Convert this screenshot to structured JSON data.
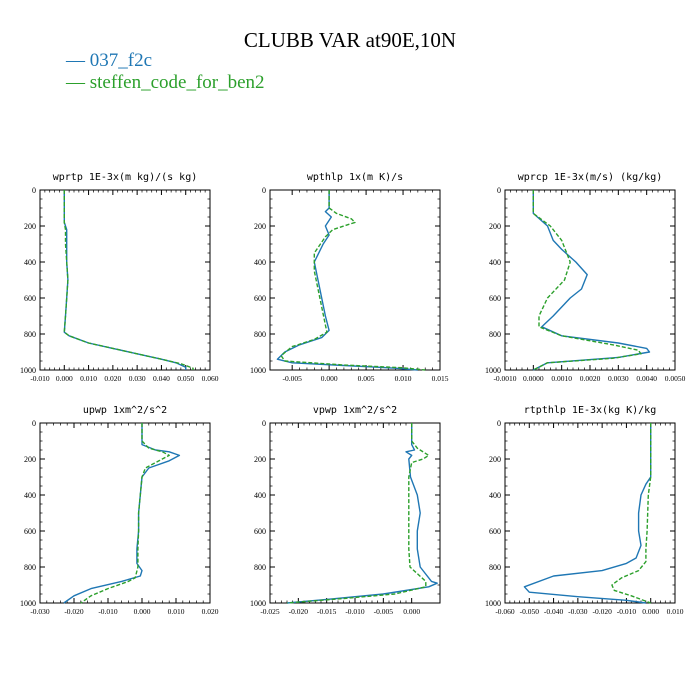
{
  "title": "CLUBB VAR at90E,10N",
  "legend": [
    {
      "name": "037_f2c",
      "color": "#1f77b4",
      "style": "solid"
    },
    {
      "name": "steffen_code_for_ben2",
      "color": "#2ca02c",
      "style": "dashed"
    }
  ],
  "chart_data": [
    {
      "type": "line",
      "title": "wprtp  1E-3x(m kg)/(s kg)",
      "xlim": [
        -0.01,
        0.06
      ],
      "ylim": [
        0,
        1000
      ],
      "y_inverted": true,
      "xticks": [
        "-0.010",
        "0.000",
        "0.010",
        "0.020",
        "0.030",
        "0.040",
        "0.050",
        "0.060"
      ],
      "yticks": [
        "0",
        "200",
        "400",
        "600",
        "800",
        "1000"
      ],
      "series": [
        {
          "name": "037_f2c",
          "points": [
            [
              0,
              0
            ],
            [
              0,
              100
            ],
            [
              0,
              180
            ],
            [
              0.001,
              220
            ],
            [
              0.001,
              300
            ],
            [
              0.001,
              400
            ],
            [
              0.0015,
              500
            ],
            [
              0.001,
              600
            ],
            [
              0.0005,
              700
            ],
            [
              0,
              790
            ],
            [
              0.002,
              810
            ],
            [
              0.01,
              850
            ],
            [
              0.02,
              880
            ],
            [
              0.03,
              910
            ],
            [
              0.04,
              940
            ],
            [
              0.046,
              960
            ],
            [
              0.05,
              985
            ],
            [
              0.05,
              1000
            ]
          ]
        },
        {
          "name": "steffen_code_for_ben2",
          "points": [
            [
              0,
              0
            ],
            [
              0,
              100
            ],
            [
              0,
              180
            ],
            [
              0.0005,
              220
            ],
            [
              0.0005,
              300
            ],
            [
              0.001,
              400
            ],
            [
              0.0015,
              500
            ],
            [
              0.001,
              600
            ],
            [
              0.0005,
              700
            ],
            [
              0,
              790
            ],
            [
              0.002,
              810
            ],
            [
              0.01,
              850
            ],
            [
              0.02,
              880
            ],
            [
              0.03,
              910
            ],
            [
              0.04,
              940
            ],
            [
              0.048,
              965
            ],
            [
              0.053,
              990
            ],
            [
              0.053,
              1000
            ]
          ]
        }
      ]
    },
    {
      "type": "line",
      "title": "wpthlp  1x(m K)/s",
      "xlim": [
        -0.008,
        0.015
      ],
      "ylim": [
        0,
        1000
      ],
      "y_inverted": true,
      "xticks": [
        "-0.005",
        "0.000",
        "0.005",
        "0.010",
        "0.015"
      ],
      "yticks": [
        "0",
        "200",
        "400",
        "600",
        "800",
        "1000"
      ],
      "series": [
        {
          "name": "037_f2c",
          "points": [
            [
              0,
              0
            ],
            [
              0,
              100
            ],
            [
              -0.0005,
              120
            ],
            [
              0.0003,
              150
            ],
            [
              -0.0005,
              200
            ],
            [
              0,
              250
            ],
            [
              -0.0008,
              300
            ],
            [
              -0.002,
              400
            ],
            [
              -0.0015,
              500
            ],
            [
              -0.001,
              600
            ],
            [
              -0.0005,
              700
            ],
            [
              0,
              780
            ],
            [
              -0.001,
              820
            ],
            [
              -0.004,
              860
            ],
            [
              -0.006,
              900
            ],
            [
              -0.007,
              940
            ],
            [
              -0.005,
              960
            ],
            [
              0.002,
              975
            ],
            [
              0.009,
              990
            ],
            [
              0.012,
              1000
            ]
          ]
        },
        {
          "name": "steffen_code_for_ben2",
          "points": [
            [
              0,
              0
            ],
            [
              0,
              100
            ],
            [
              0.001,
              130
            ],
            [
              0.003,
              160
            ],
            [
              0.0035,
              180
            ],
            [
              0.002,
              200
            ],
            [
              0.0005,
              220
            ],
            [
              -0.0005,
              260
            ],
            [
              -0.002,
              350
            ],
            [
              -0.002,
              450
            ],
            [
              -0.0015,
              550
            ],
            [
              -0.001,
              650
            ],
            [
              -0.0005,
              750
            ],
            [
              -0.0003,
              790
            ],
            [
              -0.002,
              830
            ],
            [
              -0.005,
              870
            ],
            [
              -0.0065,
              920
            ],
            [
              -0.006,
              950
            ],
            [
              0.002,
              972
            ],
            [
              0.01,
              988
            ],
            [
              0.013,
              1000
            ]
          ]
        }
      ]
    },
    {
      "type": "line",
      "title": "wprcp  1E-3x(m/s) (kg/kg)",
      "xlim": [
        -0.001,
        0.005
      ],
      "ylim": [
        0,
        1000
      ],
      "y_inverted": true,
      "xticks": [
        "-0.0010",
        "0.0000",
        "0.0010",
        "0.0020",
        "0.0030",
        "0.0040",
        "0.0050"
      ],
      "yticks": [
        "0",
        "200",
        "400",
        "600",
        "800",
        "1000"
      ],
      "series": [
        {
          "name": "037_f2c",
          "points": [
            [
              0,
              0
            ],
            [
              0,
              100
            ],
            [
              0,
              130
            ],
            [
              0.0005,
              200
            ],
            [
              0.0007,
              280
            ],
            [
              0.001,
              330
            ],
            [
              0.0015,
              400
            ],
            [
              0.0019,
              470
            ],
            [
              0.0017,
              550
            ],
            [
              0.0013,
              600
            ],
            [
              0.0007,
              700
            ],
            [
              0.0003,
              760
            ],
            [
              0.001,
              810
            ],
            [
              0.003,
              850
            ],
            [
              0.004,
              880
            ],
            [
              0.0041,
              900
            ],
            [
              0.003,
              930
            ],
            [
              0.0005,
              960
            ],
            [
              0,
              1000
            ]
          ]
        },
        {
          "name": "steffen_code_for_ben2",
          "points": [
            [
              0,
              0
            ],
            [
              0,
              100
            ],
            [
              0,
              130
            ],
            [
              0.0006,
              200
            ],
            [
              0.001,
              280
            ],
            [
              0.0013,
              400
            ],
            [
              0.0011,
              500
            ],
            [
              0.0005,
              600
            ],
            [
              0.0002,
              700
            ],
            [
              0.0002,
              760
            ],
            [
              0.001,
              810
            ],
            [
              0.0028,
              860
            ],
            [
              0.0037,
              890
            ],
            [
              0.0038,
              910
            ],
            [
              0.0028,
              935
            ],
            [
              0.0005,
              960
            ],
            [
              0,
              1000
            ]
          ]
        }
      ]
    },
    {
      "type": "line",
      "title": "upwp  1xm^2/s^2",
      "xlim": [
        -0.03,
        0.02
      ],
      "ylim": [
        0,
        1000
      ],
      "y_inverted": true,
      "xticks": [
        "-0.030",
        "-0.020",
        "-0.010",
        "0.000",
        "0.010",
        "0.020"
      ],
      "yticks": [
        "0",
        "200",
        "400",
        "600",
        "800",
        "1000"
      ],
      "series": [
        {
          "name": "037_f2c",
          "points": [
            [
              0,
              0
            ],
            [
              0,
              100
            ],
            [
              0,
              120
            ],
            [
              0.004,
              150
            ],
            [
              0.008,
              160
            ],
            [
              0.011,
              180
            ],
            [
              0.008,
              210
            ],
            [
              0.002,
              250
            ],
            [
              0,
              300
            ],
            [
              -0.0005,
              400
            ],
            [
              -0.001,
              500
            ],
            [
              -0.001,
              600
            ],
            [
              -0.0015,
              700
            ],
            [
              -0.0015,
              780
            ],
            [
              0,
              820
            ],
            [
              -0.0005,
              850
            ],
            [
              -0.006,
              880
            ],
            [
              -0.015,
              920
            ],
            [
              -0.02,
              960
            ],
            [
              -0.023,
              1000
            ]
          ]
        },
        {
          "name": "steffen_code_for_ben2",
          "points": [
            [
              0,
              0
            ],
            [
              0,
              100
            ],
            [
              0.002,
              140
            ],
            [
              0.006,
              160
            ],
            [
              0.008,
              180
            ],
            [
              0.005,
              210
            ],
            [
              0.001,
              250
            ],
            [
              0,
              300
            ],
            [
              -0.0005,
              400
            ],
            [
              -0.001,
              500
            ],
            [
              -0.001,
              600
            ],
            [
              -0.0012,
              700
            ],
            [
              -0.0012,
              800
            ],
            [
              -0.002,
              860
            ],
            [
              -0.004,
              880
            ],
            [
              -0.01,
              920
            ],
            [
              -0.015,
              960
            ],
            [
              -0.018,
              1000
            ]
          ]
        }
      ]
    },
    {
      "type": "line",
      "title": "vpwp  1xm^2/s^2",
      "xlim": [
        -0.025,
        0.005
      ],
      "ylim": [
        0,
        1000
      ],
      "y_inverted": true,
      "xticks": [
        "-0.025",
        "-0.020",
        "-0.015",
        "-0.010",
        "-0.005",
        "0.000"
      ],
      "yticks": [
        "0",
        "200",
        "400",
        "600",
        "800",
        "1000"
      ],
      "series": [
        {
          "name": "037_f2c",
          "points": [
            [
              0,
              0
            ],
            [
              0,
              100
            ],
            [
              0,
              120
            ],
            [
              0.0005,
              150
            ],
            [
              -0.001,
              160
            ],
            [
              0,
              180
            ],
            [
              -0.0005,
              200
            ],
            [
              -0.0002,
              300
            ],
            [
              0.001,
              400
            ],
            [
              0.0015,
              500
            ],
            [
              0.001,
              600
            ],
            [
              0.001,
              700
            ],
            [
              0.0015,
              800
            ],
            [
              0.0035,
              880
            ],
            [
              0.0045,
              890
            ],
            [
              0.003,
              910
            ],
            [
              -0.005,
              950
            ],
            [
              -0.015,
              980
            ],
            [
              -0.022,
              1000
            ]
          ]
        },
        {
          "name": "steffen_code_for_ben2",
          "points": [
            [
              0,
              0
            ],
            [
              0,
              100
            ],
            [
              0.001,
              140
            ],
            [
              0.003,
              180
            ],
            [
              0.002,
              200
            ],
            [
              0,
              220
            ],
            [
              -0.0005,
              300
            ],
            [
              -0.0005,
              500
            ],
            [
              -0.0005,
              700
            ],
            [
              -0.0003,
              800
            ],
            [
              0.0025,
              880
            ],
            [
              0.0025,
              910
            ],
            [
              -0.003,
              950
            ],
            [
              -0.012,
              975
            ],
            [
              -0.022,
              1000
            ]
          ]
        }
      ]
    },
    {
      "type": "line",
      "title": "rtpthlp  1E-3x(kg K)/kg",
      "xlim": [
        -0.06,
        0.01
      ],
      "ylim": [
        0,
        1000
      ],
      "y_inverted": true,
      "xticks": [
        "-0.060",
        "-0.050",
        "-0.040",
        "-0.030",
        "-0.020",
        "-0.010",
        "0.000",
        "0.010"
      ],
      "yticks": [
        "0",
        "200",
        "400",
        "600",
        "800",
        "1000"
      ],
      "series": [
        {
          "name": "037_f2c",
          "points": [
            [
              0,
              0
            ],
            [
              0,
              200
            ],
            [
              0,
              300
            ],
            [
              -0.002,
              340
            ],
            [
              -0.004,
              400
            ],
            [
              -0.005,
              500
            ],
            [
              -0.005,
              600
            ],
            [
              -0.004,
              680
            ],
            [
              -0.006,
              750
            ],
            [
              -0.01,
              780
            ],
            [
              -0.02,
              820
            ],
            [
              -0.04,
              850
            ],
            [
              -0.052,
              910
            ],
            [
              -0.05,
              940
            ],
            [
              -0.03,
              965
            ],
            [
              -0.01,
              985
            ],
            [
              -0.002,
              1000
            ]
          ]
        },
        {
          "name": "steffen_code_for_ben2",
          "points": [
            [
              0,
              0
            ],
            [
              0,
              200
            ],
            [
              0,
              300
            ],
            [
              -0.001,
              400
            ],
            [
              -0.0015,
              600
            ],
            [
              -0.002,
              700
            ],
            [
              -0.002,
              770
            ],
            [
              -0.005,
              820
            ],
            [
              -0.012,
              860
            ],
            [
              -0.016,
              900
            ],
            [
              -0.015,
              930
            ],
            [
              -0.008,
              960
            ],
            [
              -0.002,
              990
            ],
            [
              0,
              1000
            ]
          ]
        }
      ]
    }
  ]
}
